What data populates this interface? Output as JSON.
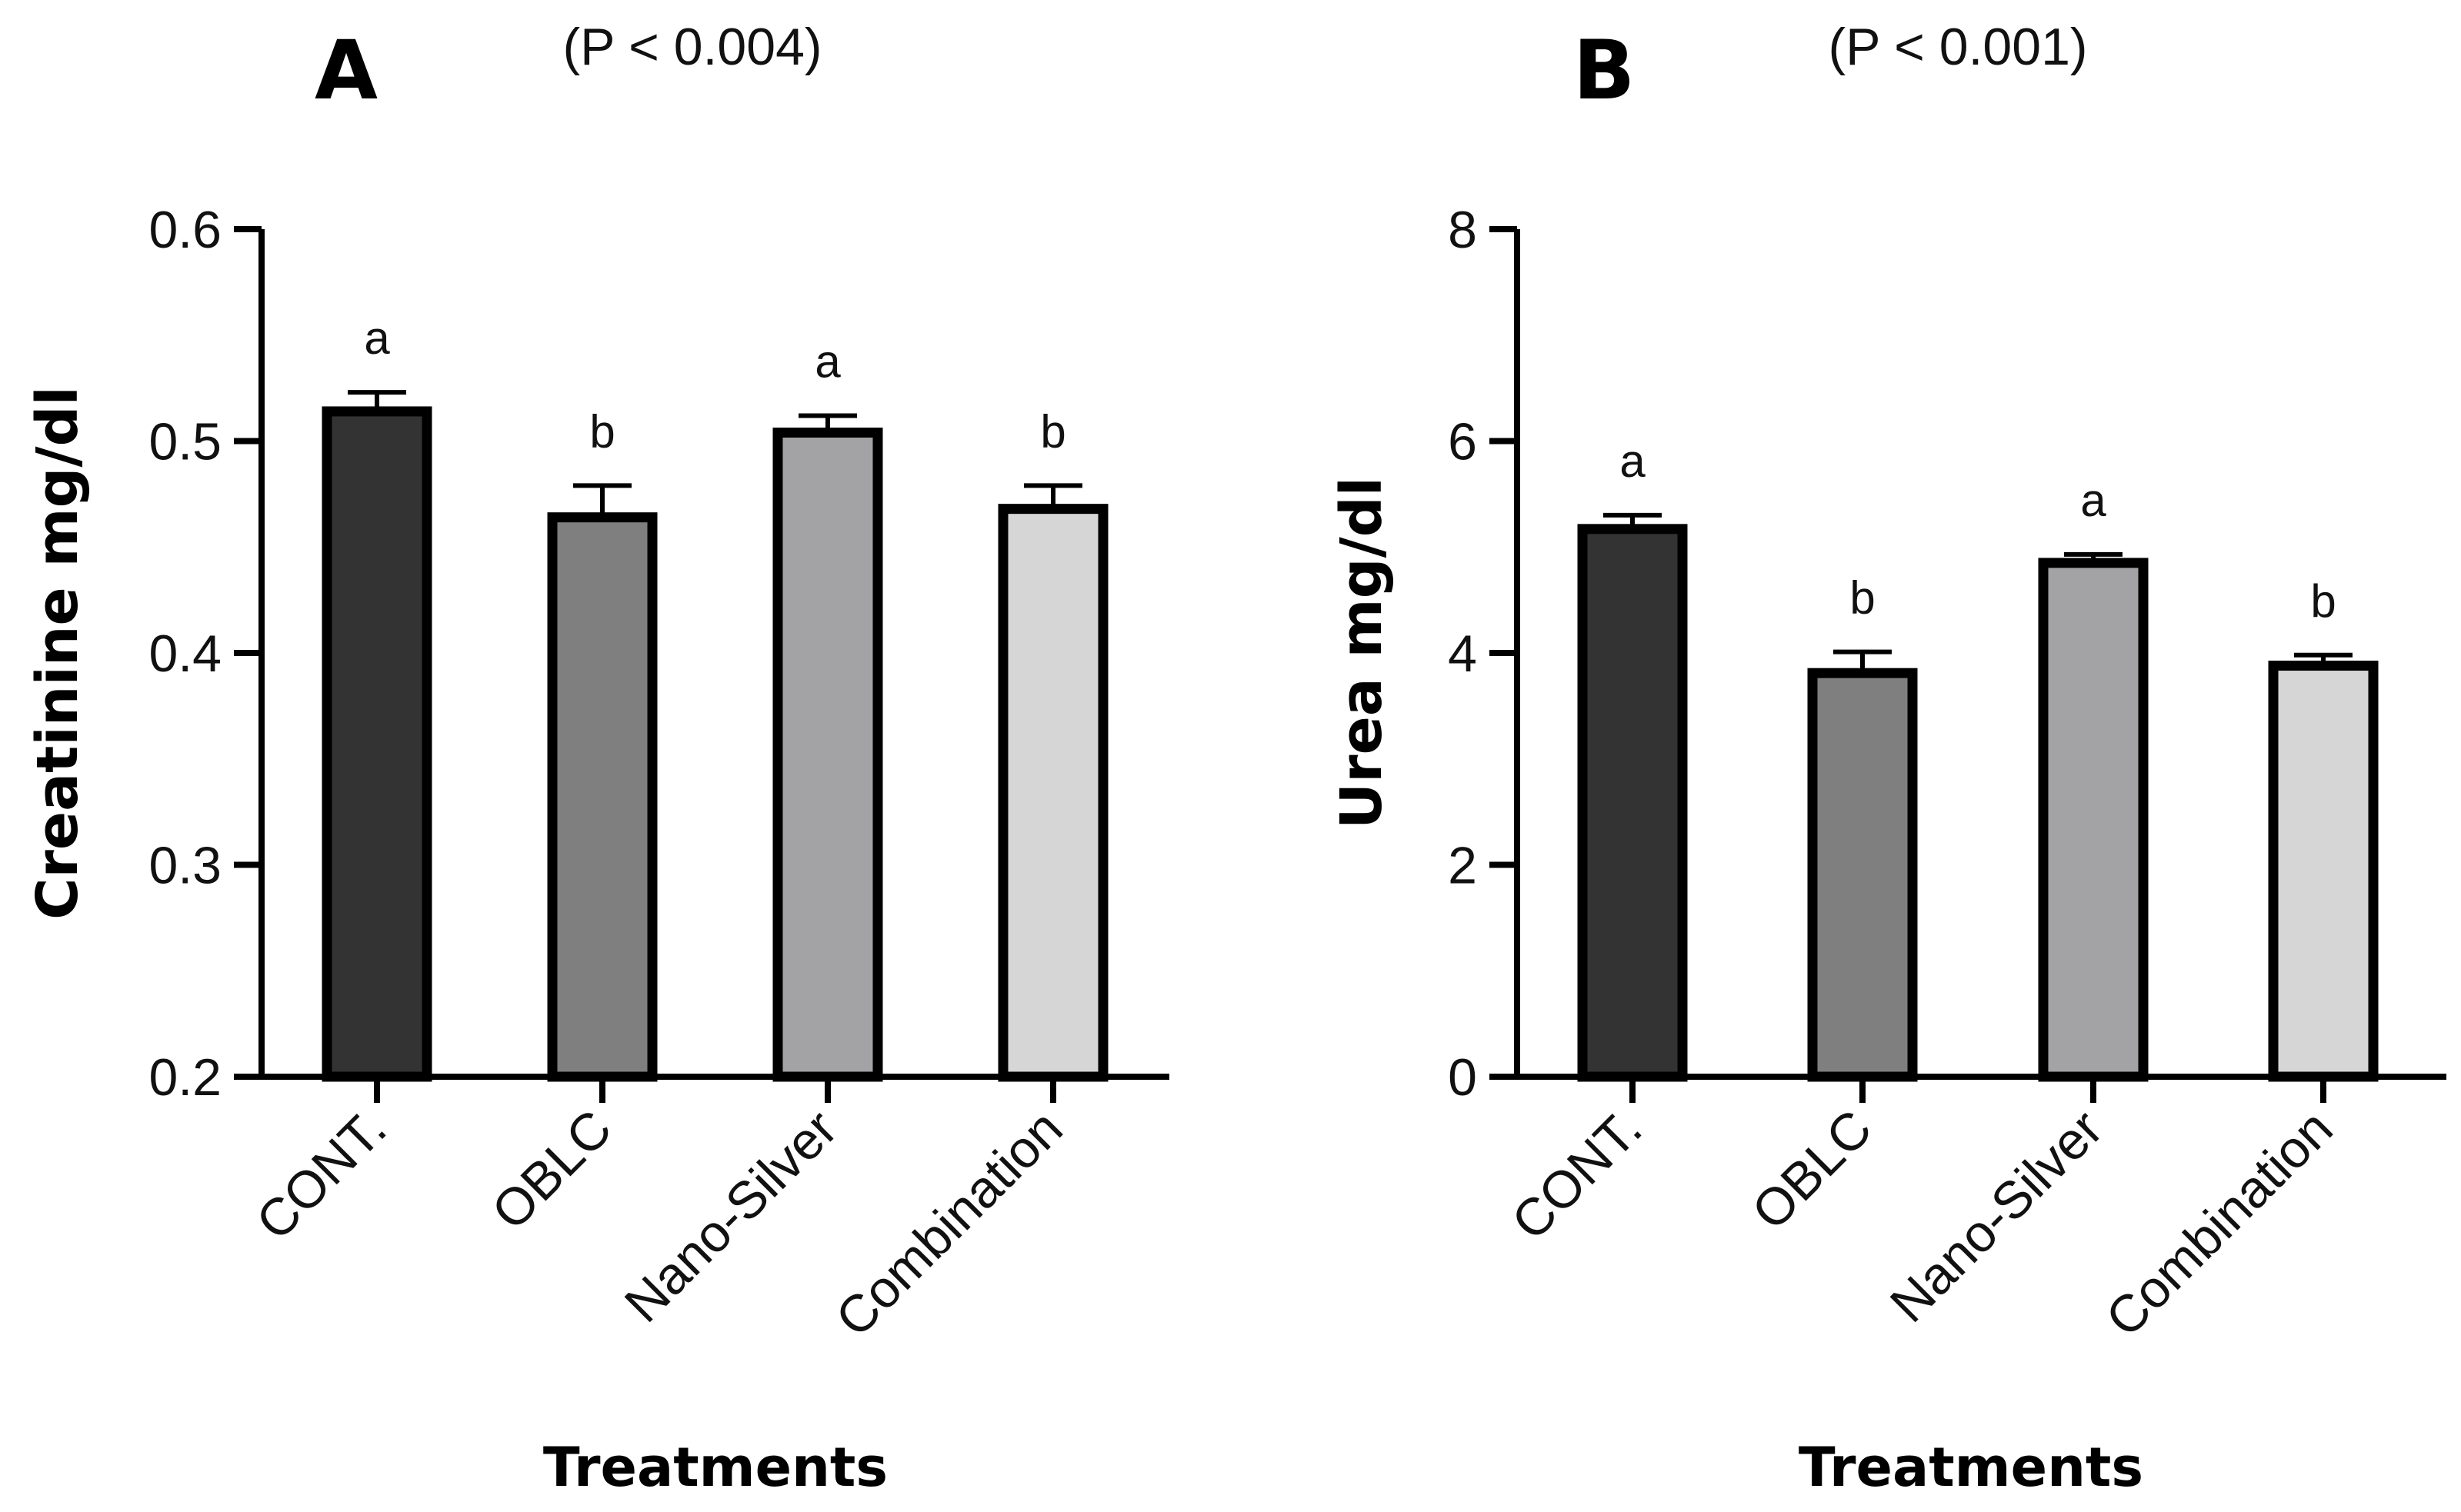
{
  "chart_data": [
    {
      "type": "bar",
      "panel": "A",
      "title": "(P < 0.004)",
      "xlabel": "Treatments",
      "ylabel": "Creatinine mg/dl",
      "categories": [
        "CONT.",
        "OBLC",
        "Nano-Silver",
        "Combination"
      ],
      "values": [
        0.514,
        0.464,
        0.504,
        0.468
      ],
      "errors": [
        0.009,
        0.015,
        0.008,
        0.011
      ],
      "significance": [
        "a",
        "b",
        "a",
        "b"
      ],
      "colors": [
        "#333333",
        "#7f7f7f",
        "#a3a3a6",
        "#d6d6d6"
      ],
      "ylim": [
        0.2,
        0.6
      ],
      "yticks": [
        0.2,
        0.3,
        0.4,
        0.5,
        0.6
      ],
      "ytick_labels": [
        "0.2",
        "0.3",
        "0.4",
        "0.5",
        "0.6"
      ]
    },
    {
      "type": "bar",
      "panel": "B",
      "title": "(P < 0.001)",
      "xlabel": "Treatments",
      "ylabel": "Urea mg/dl",
      "categories": [
        "CONT.",
        "OBLC",
        "Nano-Silver",
        "Combination"
      ],
      "values": [
        5.17,
        3.81,
        4.85,
        3.88
      ],
      "errors": [
        0.13,
        0.2,
        0.08,
        0.1
      ],
      "significance": [
        "a",
        "b",
        "a",
        "b"
      ],
      "colors": [
        "#333333",
        "#7f7f7f",
        "#a3a3a6",
        "#d6d6d6"
      ],
      "ylim": [
        0,
        8
      ],
      "yticks": [
        0,
        2,
        4,
        6,
        8
      ],
      "ytick_labels": [
        "0",
        "2",
        "4",
        "6",
        "8"
      ]
    }
  ]
}
